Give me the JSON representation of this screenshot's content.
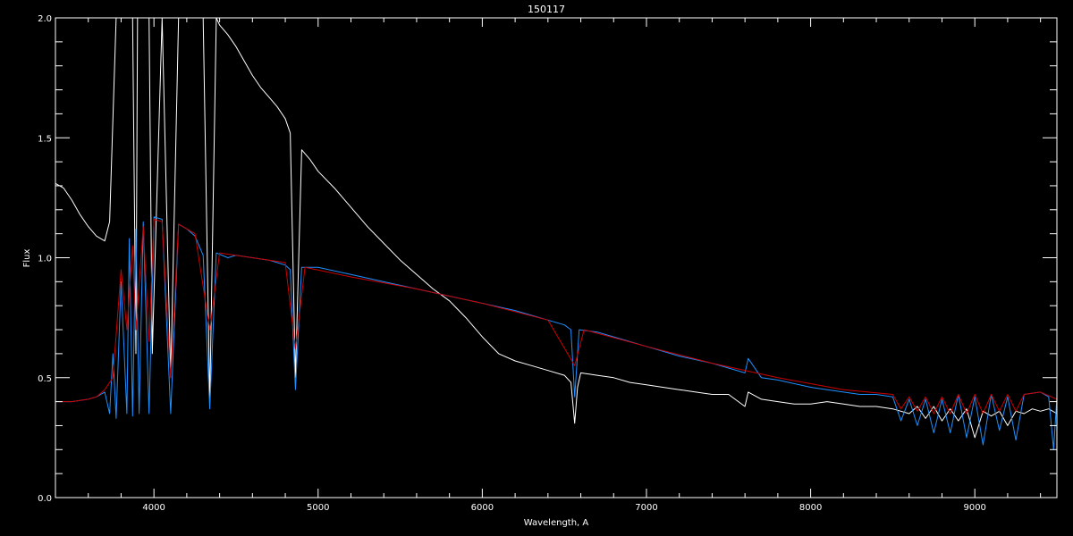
{
  "chart_data": {
    "type": "line",
    "title": "150117",
    "xlabel": "Wavelength, A",
    "ylabel": "Flux",
    "xlim": [
      3400,
      9500
    ],
    "ylim": [
      0,
      2
    ],
    "x_ticks": [
      4000,
      5000,
      6000,
      7000,
      8000,
      9000
    ],
    "x_tick_labels": [
      "4000",
      "5000",
      "6000",
      "7000",
      "8000",
      "9000"
    ],
    "y_ticks": [
      0.0,
      0.5,
      1.0,
      1.5,
      2.0
    ],
    "y_tick_labels": [
      "0.0",
      "0.5",
      "1.0",
      "1.5",
      "2.0"
    ],
    "grid": false,
    "background": "#000000",
    "series": [
      {
        "color": "#ffffff",
        "x": [
          3400,
          3450,
          3500,
          3550,
          3600,
          3650,
          3700,
          3730,
          3770,
          3800,
          3835,
          3870,
          3890,
          3900,
          3925,
          3970,
          3990,
          4050,
          4102,
          4150,
          4200,
          4250,
          4300,
          4340,
          4380,
          4400,
          4450,
          4500,
          4550,
          4600,
          4650,
          4700,
          4750,
          4800,
          4830,
          4862,
          4900,
          4950,
          5000,
          5100,
          5200,
          5300,
          5400,
          5500,
          5600,
          5700,
          5800,
          5900,
          6000,
          6100,
          6200,
          6300,
          6400,
          6500,
          6540,
          6563,
          6580,
          6600,
          6700,
          6800,
          6900,
          7000,
          7100,
          7200,
          7300,
          7400,
          7500,
          7600,
          7620,
          7700,
          7800,
          7900,
          8000,
          8100,
          8200,
          8300,
          8400,
          8500,
          8600,
          8650,
          8700,
          8750,
          8800,
          8850,
          8900,
          8950,
          9000,
          9050,
          9100,
          9150,
          9200,
          9250,
          9300,
          9350,
          9400,
          9450,
          9500
        ],
        "y": [
          1.31,
          1.29,
          1.24,
          1.18,
          1.13,
          1.09,
          1.07,
          1.15,
          2.0,
          2.0,
          2.0,
          2.0,
          0.6,
          2.0,
          2.0,
          2.0,
          0.6,
          2.0,
          0.5,
          2.0,
          2.0,
          2.0,
          2.0,
          0.4,
          2.0,
          1.97,
          1.93,
          1.88,
          1.82,
          1.76,
          1.71,
          1.67,
          1.63,
          1.58,
          1.52,
          0.5,
          1.45,
          1.41,
          1.36,
          1.29,
          1.21,
          1.13,
          1.06,
          0.99,
          0.93,
          0.87,
          0.82,
          0.75,
          0.67,
          0.6,
          0.57,
          0.55,
          0.53,
          0.51,
          0.48,
          0.31,
          0.46,
          0.52,
          0.51,
          0.5,
          0.48,
          0.47,
          0.46,
          0.45,
          0.44,
          0.43,
          0.43,
          0.38,
          0.44,
          0.41,
          0.4,
          0.39,
          0.39,
          0.4,
          0.39,
          0.38,
          0.38,
          0.37,
          0.35,
          0.38,
          0.33,
          0.38,
          0.32,
          0.37,
          0.32,
          0.37,
          0.25,
          0.36,
          0.34,
          0.36,
          0.3,
          0.36,
          0.35,
          0.37,
          0.36,
          0.37,
          0.35
        ]
      },
      {
        "color": "#1e90ff",
        "x": [
          3400,
          3500,
          3600,
          3650,
          3700,
          3730,
          3750,
          3770,
          3800,
          3835,
          3850,
          3870,
          3890,
          3910,
          3935,
          3970,
          4000,
          4050,
          4102,
          4150,
          4200,
          4250,
          4300,
          4340,
          4380,
          4450,
          4500,
          4600,
          4700,
          4800,
          4830,
          4862,
          4900,
          5000,
          5200,
          5400,
          5600,
          5800,
          6000,
          6200,
          6400,
          6500,
          6540,
          6563,
          6590,
          6700,
          6800,
          7000,
          7200,
          7400,
          7600,
          7620,
          7700,
          7800,
          8000,
          8100,
          8200,
          8300,
          8400,
          8500,
          8550,
          8600,
          8650,
          8700,
          8750,
          8800,
          8850,
          8900,
          8950,
          9000,
          9050,
          9100,
          9150,
          9200,
          9250,
          9300,
          9400,
          9450,
          9480,
          9500
        ],
        "y": [
          0.4,
          0.4,
          0.41,
          0.42,
          0.44,
          0.35,
          0.6,
          0.33,
          0.9,
          0.35,
          1.08,
          0.34,
          1.12,
          0.35,
          1.15,
          0.35,
          1.17,
          1.16,
          0.35,
          1.14,
          1.12,
          1.09,
          1.01,
          0.37,
          1.02,
          1.0,
          1.01,
          1.0,
          0.99,
          0.97,
          0.95,
          0.45,
          0.96,
          0.96,
          0.93,
          0.9,
          0.87,
          0.84,
          0.81,
          0.78,
          0.74,
          0.72,
          0.7,
          0.42,
          0.7,
          0.69,
          0.67,
          0.63,
          0.59,
          0.56,
          0.52,
          0.58,
          0.5,
          0.49,
          0.46,
          0.45,
          0.44,
          0.43,
          0.43,
          0.42,
          0.32,
          0.41,
          0.3,
          0.41,
          0.27,
          0.41,
          0.27,
          0.43,
          0.25,
          0.42,
          0.22,
          0.43,
          0.28,
          0.42,
          0.24,
          0.43,
          0.44,
          0.42,
          0.2,
          0.42
        ]
      },
      {
        "color": "#cc0000",
        "x": [
          3400,
          3500,
          3600,
          3650,
          3700,
          3750,
          3800,
          3835,
          3870,
          3890,
          3935,
          3970,
          4000,
          4050,
          4102,
          4150,
          4250,
          4340,
          4400,
          4600,
          4800,
          4862,
          4920,
          5200,
          5600,
          6000,
          6400,
          6563,
          6620,
          7000,
          7400,
          7800,
          8200,
          8500,
          8550,
          8600,
          8650,
          8700,
          8750,
          8800,
          8850,
          8900,
          8950,
          9000,
          9050,
          9100,
          9150,
          9200,
          9250,
          9300,
          9400,
          9500
        ],
        "y": [
          0.4,
          0.4,
          0.41,
          0.42,
          0.45,
          0.5,
          0.95,
          0.7,
          1.05,
          0.7,
          1.13,
          0.65,
          1.16,
          1.15,
          0.5,
          1.14,
          1.1,
          0.7,
          1.02,
          1.0,
          0.98,
          0.62,
          0.96,
          0.92,
          0.87,
          0.81,
          0.74,
          0.55,
          0.7,
          0.63,
          0.56,
          0.5,
          0.45,
          0.43,
          0.37,
          0.42,
          0.36,
          0.42,
          0.35,
          0.42,
          0.35,
          0.43,
          0.35,
          0.43,
          0.35,
          0.43,
          0.36,
          0.43,
          0.36,
          0.43,
          0.44,
          0.41
        ]
      },
      {
        "color": "#1e90ff",
        "x": [
          3400,
          9500
        ],
        "y": [
          0.0,
          0.0
        ]
      }
    ]
  }
}
